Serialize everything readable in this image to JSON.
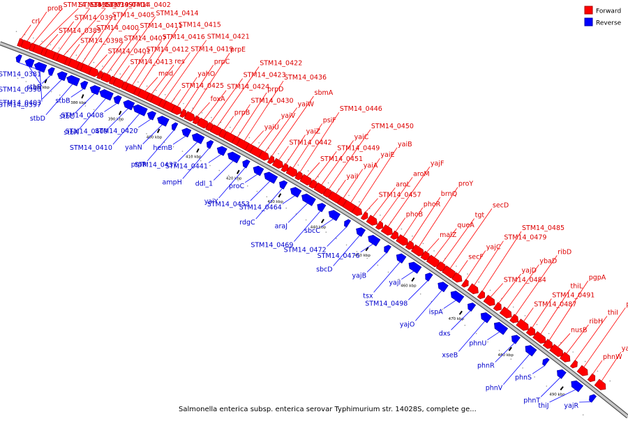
{
  "caption": "Salmonella enterica subsp. enterica serovar Typhimurium str. 14028S, complete ge...",
  "legend": [
    {
      "label": "Forward",
      "color": "#ff0000"
    },
    {
      "label": "Reverse",
      "color": "#0000ff"
    }
  ],
  "colors": {
    "forward": "#ff0000",
    "reverse": "#0000ff",
    "backbone": "#888888",
    "tick": "#000000"
  },
  "ticks": [
    "370 kbp",
    "380 kbp",
    "390 kbp",
    "400 kbp",
    "410 kbp",
    "420 kbp",
    "430 kbp",
    "440 kbp",
    "450 kbp",
    "460 kbp",
    "470 kbp",
    "480 kbp",
    "490 kbp"
  ],
  "forward_genes": [
    "crl",
    "proB",
    "STM14_0383",
    "STM14_0387",
    "STM14_0389",
    "STM14_0391",
    "STM14_0399",
    "STM14_0404",
    "STM14_0398",
    "STM14_0400",
    "STM14_0405",
    "STM14_0402",
    "STM14_0401",
    "STM14_0407",
    "STM14_0411",
    "STM14_0414",
    "STM14_0413",
    "STM14_0412",
    "STM14_0416",
    "STM14_0415",
    "mod",
    "res",
    "STM14_0419",
    "STM14_0421",
    "STM14_0425",
    "yahO",
    "prpC",
    "prpE",
    "foxA",
    "STM14_0424",
    "STM14_0423",
    "STM14_0422",
    "prpB",
    "STM14_0430",
    "prpD",
    "STM14_0436",
    "yaiU",
    "yaiV",
    "yaiW",
    "sbmA",
    "STM14_0442",
    "yaiZ",
    "psiF",
    "STM14_0446",
    "STM14_0451",
    "STM14_0449",
    "yaiC",
    "STM14_0450",
    "yaiI",
    "yaiA",
    "yaiE",
    "yaiB",
    "STM14_0457",
    "aroL",
    "aroM",
    "yajF",
    "phoB",
    "phoR",
    "brnQ",
    "proY",
    "malZ",
    "queA",
    "tgt",
    "secD",
    "secF",
    "yajC",
    "STM14_0479",
    "STM14_0485",
    "STM14_0484",
    "yajD",
    "ybaD",
    "ribD",
    "STM14_0487",
    "STM14_0491",
    "thiL",
    "pgpA",
    "nusB",
    "ribH",
    "thiI",
    "phnX",
    "phnW",
    "yajQ"
  ],
  "reverse_genes": [
    "STM14_0381",
    "STM14_0390",
    "STM14_0397",
    "stbE",
    "STM14_0403",
    "stbD",
    "stbB",
    "stbC",
    "stbA",
    "STM14_0408",
    "STM14_0409",
    "STM14_0410",
    "STM14_0420",
    "yahN",
    "prpR",
    "hemB",
    "STM14_0437",
    "ampH",
    "STM14_0441",
    "ddl_1",
    "yaiY",
    "proC",
    "STM14_0453",
    "rdgC",
    "STM14_0464",
    "araJ",
    "STM14_0469",
    "sbcC",
    "STM14_0472",
    "sbcD",
    "STM14_0476",
    "yajB",
    "tsx",
    "yajI",
    "STM14_0498",
    "yajO",
    "ispA",
    "dxs",
    "xseB",
    "phnU",
    "phnR",
    "phnV",
    "phnS",
    "phnT",
    "thiJ",
    "yajR"
  ]
}
